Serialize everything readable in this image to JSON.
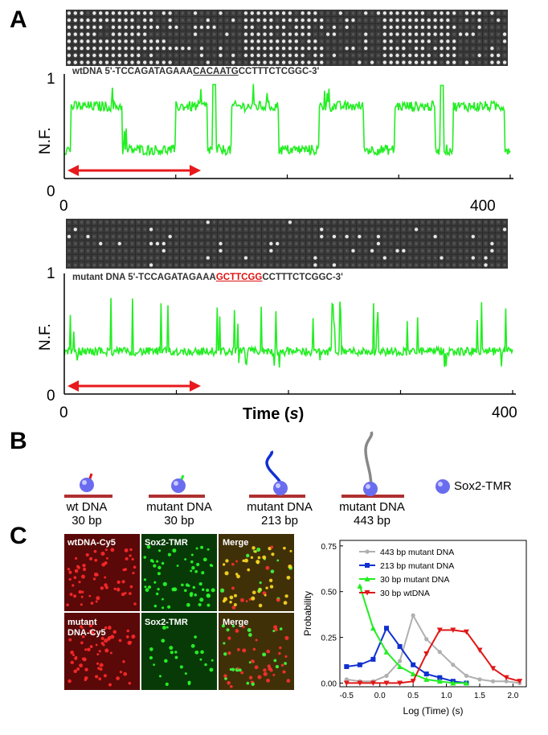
{
  "panel_labels": {
    "a": "A",
    "b": "B",
    "c": "C"
  },
  "trace1": {
    "sequence_prefix": "wtDNA 5'-TCCAGATAGAAA",
    "sequence_motif": "CACAATG",
    "sequence_suffix": "CCTTTCTCGGC-3'",
    "ylabel": "N.F.",
    "ytick_top": "1",
    "ytick_bottom": "0",
    "xtick_left": "0",
    "xtick_right": "400"
  },
  "trace2": {
    "sequence_prefix": "mutant DNA 5'-TCCAGATAGAAA",
    "sequence_motif": "GCTTCGG",
    "sequence_suffix": "CCTTTCTCGGC-3'",
    "ylabel": "N.F.",
    "ytick_top": "1",
    "ytick_bottom": "0",
    "xtick_left": "0",
    "xtick_right": "400",
    "xlabel_pre": "Time (",
    "xlabel_var": "s",
    "xlabel_post": ")"
  },
  "colors": {
    "trace": "#22ee22",
    "arrow": "#e8191c",
    "dna_bar": "#b03030",
    "protein": "#6a6cf0"
  },
  "diagram": {
    "items": [
      {
        "line1": "wt DNA",
        "line2": "30 bp"
      },
      {
        "line1": "mutant DNA",
        "line2": "30 bp"
      },
      {
        "line1": "mutant DNA",
        "line2": "213 bp"
      },
      {
        "line1": "mutant DNA",
        "line2": "443 bp"
      }
    ],
    "legend_label": "Sox2-TMR"
  },
  "micrographs": {
    "row1": [
      "wtDNA-Cy5",
      "Sox2-TMR",
      "Merge"
    ],
    "row2_line1": "mutant",
    "row2_line2": "DNA-Cy5",
    "row2": [
      "Sox2-TMR",
      "Merge"
    ]
  },
  "chart_data": {
    "type": "line",
    "xlabel": "Log (Time)  (s)",
    "ylabel": "Probability",
    "xlim": [
      -0.6,
      2.2
    ],
    "ylim": [
      -0.02,
      0.78
    ],
    "xticks": [
      "-0.5",
      "0.0",
      "0.5",
      "1.0",
      "1.5",
      "2.0"
    ],
    "yticks": [
      "0.00",
      "0.25",
      "0.50",
      "0.75"
    ],
    "series": [
      {
        "name": "443 bp mutant DNA",
        "color": "#b0b0b0",
        "marker": "circle",
        "x": [
          -0.5,
          -0.3,
          -0.1,
          0.1,
          0.3,
          0.5,
          0.7,
          0.9,
          1.1,
          1.3,
          1.5,
          1.7,
          1.9,
          2.1
        ],
        "y": [
          0.02,
          0.01,
          0.01,
          0.04,
          0.12,
          0.37,
          0.24,
          0.17,
          0.1,
          0.04,
          0.02,
          0.01,
          0.01,
          0.0
        ]
      },
      {
        "name": "213 bp mutant DNA",
        "color": "#1030d0",
        "marker": "square",
        "x": [
          -0.5,
          -0.3,
          -0.1,
          0.1,
          0.3,
          0.5,
          0.7,
          0.9,
          1.1,
          1.3
        ],
        "y": [
          0.09,
          0.1,
          0.13,
          0.3,
          0.2,
          0.1,
          0.05,
          0.03,
          0.01,
          0.0
        ]
      },
      {
        "name": "30 bp mutant DNA",
        "color": "#22ee22",
        "marker": "triangle-up",
        "x": [
          -0.3,
          -0.1,
          0.1,
          0.3,
          0.5,
          0.7,
          0.9,
          1.1,
          1.3
        ],
        "y": [
          0.53,
          0.3,
          0.17,
          0.09,
          0.05,
          0.02,
          0.01,
          0.0,
          0.0
        ]
      },
      {
        "name": "30 bp wtDNA",
        "color": "#e01818",
        "marker": "triangle-down",
        "x": [
          -0.5,
          -0.3,
          -0.1,
          0.1,
          0.3,
          0.5,
          0.7,
          0.9,
          1.1,
          1.3,
          1.5,
          1.7,
          1.9,
          2.1
        ],
        "y": [
          0.0,
          0.0,
          0.0,
          0.0,
          0.0,
          0.01,
          0.16,
          0.29,
          0.29,
          0.28,
          0.18,
          0.08,
          0.03,
          0.01
        ]
      }
    ],
    "legend_position": "top-right"
  }
}
